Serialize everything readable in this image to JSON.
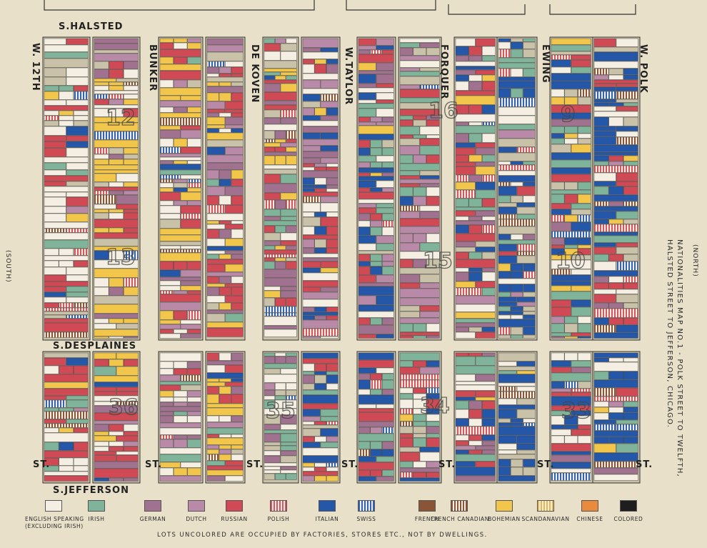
{
  "map": {
    "title_line1": "NATIONALITIES MAP NO.1 - POLK STREET TO TWELFTH,",
    "title_line2": "HALSTED STREET TO JEFFERSON, CHICAGO.",
    "north_label": "(NORTH)",
    "south_label": "(SOUTH)",
    "streets": {
      "halsted": "S.HALSTED",
      "desplaines": "S.DESPLAINES",
      "jefferson": "S.JEFFERSON",
      "twelfth": "W. 12TH",
      "bunker": "BUNKER",
      "dekoven": "DE KOVEN",
      "taylor": "W.TAYLOR",
      "forquer": "FORQUER",
      "ewing": "EWING",
      "polk": "W. POLK",
      "st": "ST."
    },
    "block_numbers": [
      "12",
      "13",
      "36",
      "15",
      "35",
      "34",
      "10",
      "33",
      "9",
      "16"
    ],
    "note": "LOTS UNCOLORED ARE OCCUPIED BY FACTORIES, STORES ETC., NOT BY DWELLINGS."
  },
  "legend": [
    {
      "label": "ENGLISH SPEAKING",
      "sub": "(EXCLUDING IRISH)",
      "color": "#f4efe2",
      "pattern": "solid"
    },
    {
      "label": "IRISH",
      "sub": "",
      "color": "#7fb49a",
      "pattern": "solid"
    },
    {
      "label": "GERMAN",
      "sub": "",
      "color": "#a0728f",
      "pattern": "solid"
    },
    {
      "label": "DUTCH",
      "sub": "",
      "color": "#b98aa8",
      "pattern": "solid"
    },
    {
      "label": "RUSSIAN",
      "sub": "",
      "color": "#cf4a55",
      "pattern": "solid"
    },
    {
      "label": "POLISH",
      "sub": "",
      "color": "#d9545e",
      "pattern": "stripes"
    },
    {
      "label": "ITALIAN",
      "sub": "",
      "color": "#2557a8",
      "pattern": "solid"
    },
    {
      "label": "SWISS",
      "sub": "",
      "color": "#2f63b5",
      "pattern": "stripes"
    },
    {
      "label": "FRENCH",
      "sub": "",
      "color": "#8a5536",
      "pattern": "solid"
    },
    {
      "label": "FRENCH CANADIAN",
      "sub": "",
      "color": "#8a5536",
      "pattern": "stripes"
    },
    {
      "label": "BOHEMIAN",
      "sub": "",
      "color": "#f1c64a",
      "pattern": "solid"
    },
    {
      "label": "SCANDANAVIAN",
      "sub": "",
      "color": "#e8b54a",
      "pattern": "stripes"
    },
    {
      "label": "CHINESE",
      "sub": "",
      "color": "#e98a3c",
      "pattern": "solid"
    },
    {
      "label": "COLORED",
      "sub": "",
      "color": "#1e1e1e",
      "pattern": "solid"
    }
  ],
  "palette": [
    "#f4efe2",
    "#7fb49a",
    "#a0728f",
    "#b98aa8",
    "#cf4a55",
    "#2557a8",
    "#f1c64a",
    "#c9c2a8"
  ]
}
